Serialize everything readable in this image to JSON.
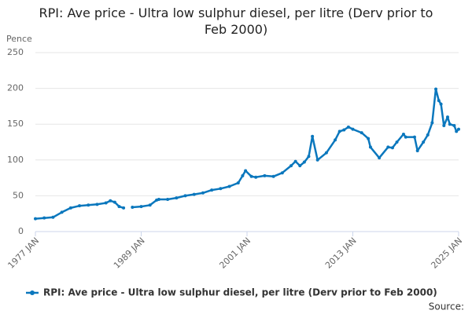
{
  "chart_data": {
    "type": "line",
    "title": "RPI: Ave price - Ultra low sulphur diesel, per litre (Derv prior to Feb 2000)",
    "y_label": "Pence",
    "source": "Source:",
    "x": [
      "1977 JAN",
      "1978 JAN",
      "1979 JAN",
      "1980 JAN",
      "1981 JAN",
      "1982 JAN",
      "1983 JAN",
      "1984 JAN",
      "1985 JAN",
      "1985 JUL",
      "1986 JAN",
      "1986 JUL",
      "1987 JAN",
      "1987 JUL",
      "1988 JAN",
      "1989 JAN",
      "1990 JAN",
      "1990 OCT",
      "1991 JAN",
      "1992 JAN",
      "1993 JAN",
      "1994 JAN",
      "1995 JAN",
      "1996 JAN",
      "1997 JAN",
      "1998 JAN",
      "1999 JAN",
      "2000 JAN",
      "2000 JUL",
      "2000 NOV",
      "2001 JUL",
      "2002 JAN",
      "2003 JAN",
      "2004 JAN",
      "2005 JAN",
      "2006 JAN",
      "2006 JUL",
      "2007 JAN",
      "2007 JUL",
      "2008 JAN",
      "2008 JUN",
      "2009 JAN",
      "2010 JAN",
      "2011 JAN",
      "2011 JUL",
      "2012 JAN",
      "2012 JUL",
      "2013 JAN",
      "2014 JAN",
      "2014 OCT",
      "2015 JAN",
      "2016 JAN",
      "2017 JAN",
      "2017 JUL",
      "2018 JAN",
      "2018 OCT",
      "2019 JAN",
      "2020 JAN",
      "2020 MAY",
      "2021 JAN",
      "2021 JUL",
      "2022 JAN",
      "2022 JUN",
      "2022 OCT",
      "2023 JAN",
      "2023 MAY",
      "2023 OCT",
      "2024 JAN",
      "2024 JUL",
      "2024 OCT",
      "2025 JAN"
    ],
    "series": [
      {
        "name": "RPI: Ave price - Ultra low sulphur diesel, per litre (Derv prior to Feb 2000)",
        "color": "#0a77bd",
        "values": [
          18,
          19,
          20,
          27,
          33,
          36,
          37,
          38,
          40,
          43,
          41,
          35,
          33,
          null,
          34,
          35,
          37,
          44,
          45,
          45,
          47,
          50,
          52,
          54,
          58,
          60,
          63,
          68,
          78,
          85,
          77,
          76,
          78,
          77,
          82,
          92,
          98,
          92,
          97,
          105,
          133,
          100,
          110,
          128,
          140,
          142,
          146,
          143,
          138,
          130,
          118,
          103,
          118,
          117,
          125,
          136,
          132,
          132,
          113,
          125,
          135,
          152,
          199,
          183,
          178,
          148,
          160,
          150,
          148,
          140,
          143
        ]
      }
    ],
    "xlim": [
      "1977 JAN",
      "2025 JAN"
    ],
    "xticks": [
      "1977 JAN",
      "1989 JAN",
      "2001 JAN",
      "2013 JAN",
      "2025 JAN"
    ],
    "ylim": [
      0,
      250
    ],
    "yticks": [
      0,
      50,
      100,
      150,
      200,
      250
    ],
    "grid": true,
    "legend": "bottom"
  }
}
